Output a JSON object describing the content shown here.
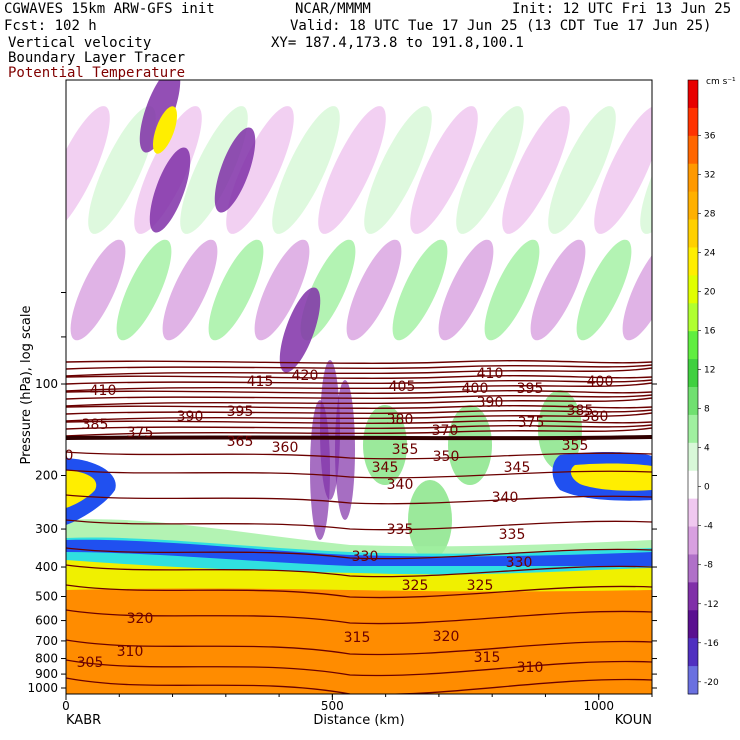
{
  "header": {
    "model": "CGWAVES 15km ARW-GFS init",
    "org": "NCAR/MMMM",
    "init": "Init: 12 UTC Fri 13 Jun 25",
    "fcst_label": "Fcst:",
    "fcst_value": "102 h",
    "valid": "Valid: 18 UTC Tue 17 Jun 25 (13 CDT Tue 17 Jun 25)",
    "fields": [
      "Vertical velocity",
      "Boundary Layer Tracer",
      "Potential Temperature"
    ],
    "xy": "XY= 187.4,173.8 to 191.8,100.1"
  },
  "colors": {
    "theta_line": "#6b0000",
    "field3_label": "#800000"
  },
  "chart_data": {
    "type": "heatmap",
    "title": "Vertical velocity / Boundary Layer Tracer / Potential Temperature",
    "xlabel": "Distance (km)",
    "ylabel": "Pressure (hPa), log scale",
    "xlim": [
      0,
      1100
    ],
    "x_ticks": [
      0,
      500,
      1000
    ],
    "y_ticks": [
      100,
      200,
      300,
      400,
      500,
      600,
      700,
      800,
      900,
      1000
    ],
    "y_scale": "log",
    "endpoints": {
      "left": "KABR",
      "right": "KOUN"
    },
    "colorbar": {
      "units": "cm s⁻¹",
      "labels": [
        "36",
        "32",
        "28",
        "24",
        "20",
        "16",
        "12",
        "8",
        "4",
        "0",
        "-4",
        "-8",
        "-12",
        "-16",
        "-20"
      ],
      "colors": [
        "#e80000",
        "#ff3300",
        "#ff6600",
        "#ff9900",
        "#ffb000",
        "#ffd000",
        "#ffee00",
        "#e0ff00",
        "#b0ff30",
        "#60ee40",
        "#40d040",
        "#70e070",
        "#a0f0a0",
        "#d8f8d8",
        "#ffffff",
        "#f0c8f0",
        "#d8a0e0",
        "#b070c8",
        "#8030a8",
        "#5a1090",
        "#5030c0",
        "#6a70e0"
      ]
    },
    "theta_labels": [
      "305",
      "310",
      "315",
      "320",
      "325",
      "330",
      "335",
      "340",
      "345",
      "350",
      "355",
      "360",
      "365",
      "370",
      "375",
      "380",
      "385",
      "390",
      "395",
      "400",
      "405",
      "410",
      "415",
      "420"
    ]
  }
}
